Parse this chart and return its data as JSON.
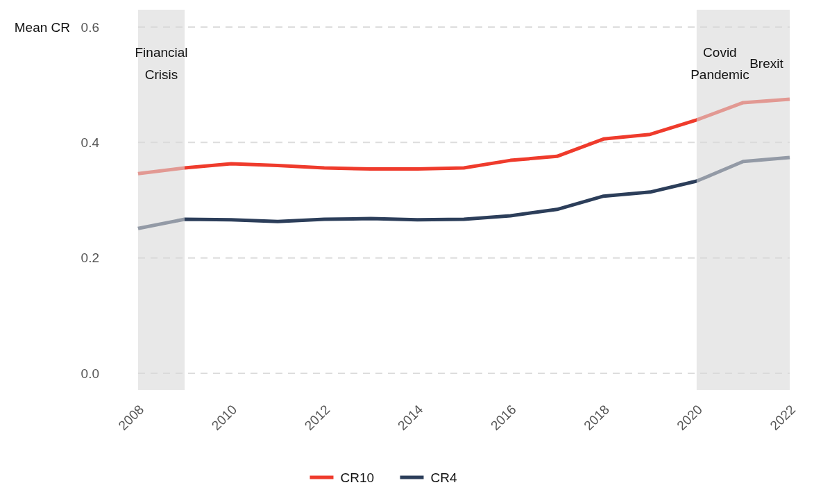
{
  "chart_data": {
    "type": "line",
    "ylabel": "Mean CR",
    "x": [
      2008,
      2009,
      2010,
      2011,
      2012,
      2013,
      2014,
      2015,
      2016,
      2017,
      2018,
      2019,
      2020,
      2021,
      2022
    ],
    "series": [
      {
        "name": "CR10",
        "color": "#ef3b2c",
        "values": [
          0.346,
          0.356,
          0.363,
          0.36,
          0.356,
          0.354,
          0.354,
          0.356,
          0.369,
          0.376,
          0.406,
          0.414,
          0.439,
          0.469,
          0.475
        ]
      },
      {
        "name": "CR4",
        "color": "#2c3e5a",
        "values": [
          0.251,
          0.267,
          0.266,
          0.263,
          0.267,
          0.268,
          0.266,
          0.267,
          0.273,
          0.284,
          0.307,
          0.314,
          0.333,
          0.367,
          0.374
        ]
      }
    ],
    "xlim": [
      2008,
      2022
    ],
    "xticks": [
      2008,
      2010,
      2012,
      2014,
      2016,
      2018,
      2020,
      2022
    ],
    "ylim": [
      0,
      0.6
    ],
    "yticks": [
      {
        "value": 0,
        "label": "0.0"
      },
      0.2,
      0.4,
      0.6
    ],
    "bands": [
      {
        "axis": "x",
        "from": 2008,
        "to": 2009,
        "label": "Financial Crisis",
        "color": "#d9d9d9"
      },
      {
        "axis": "x",
        "from": 2020,
        "to": 2021,
        "label": "Covid Pandemic",
        "color": "#d9d9d9"
      },
      {
        "axis": "x",
        "from": 2021,
        "to": 2022,
        "label": "Brexit",
        "color": "#d9d9d9"
      }
    ],
    "grid": "y",
    "line_style": "solid",
    "legend": "bottom"
  }
}
